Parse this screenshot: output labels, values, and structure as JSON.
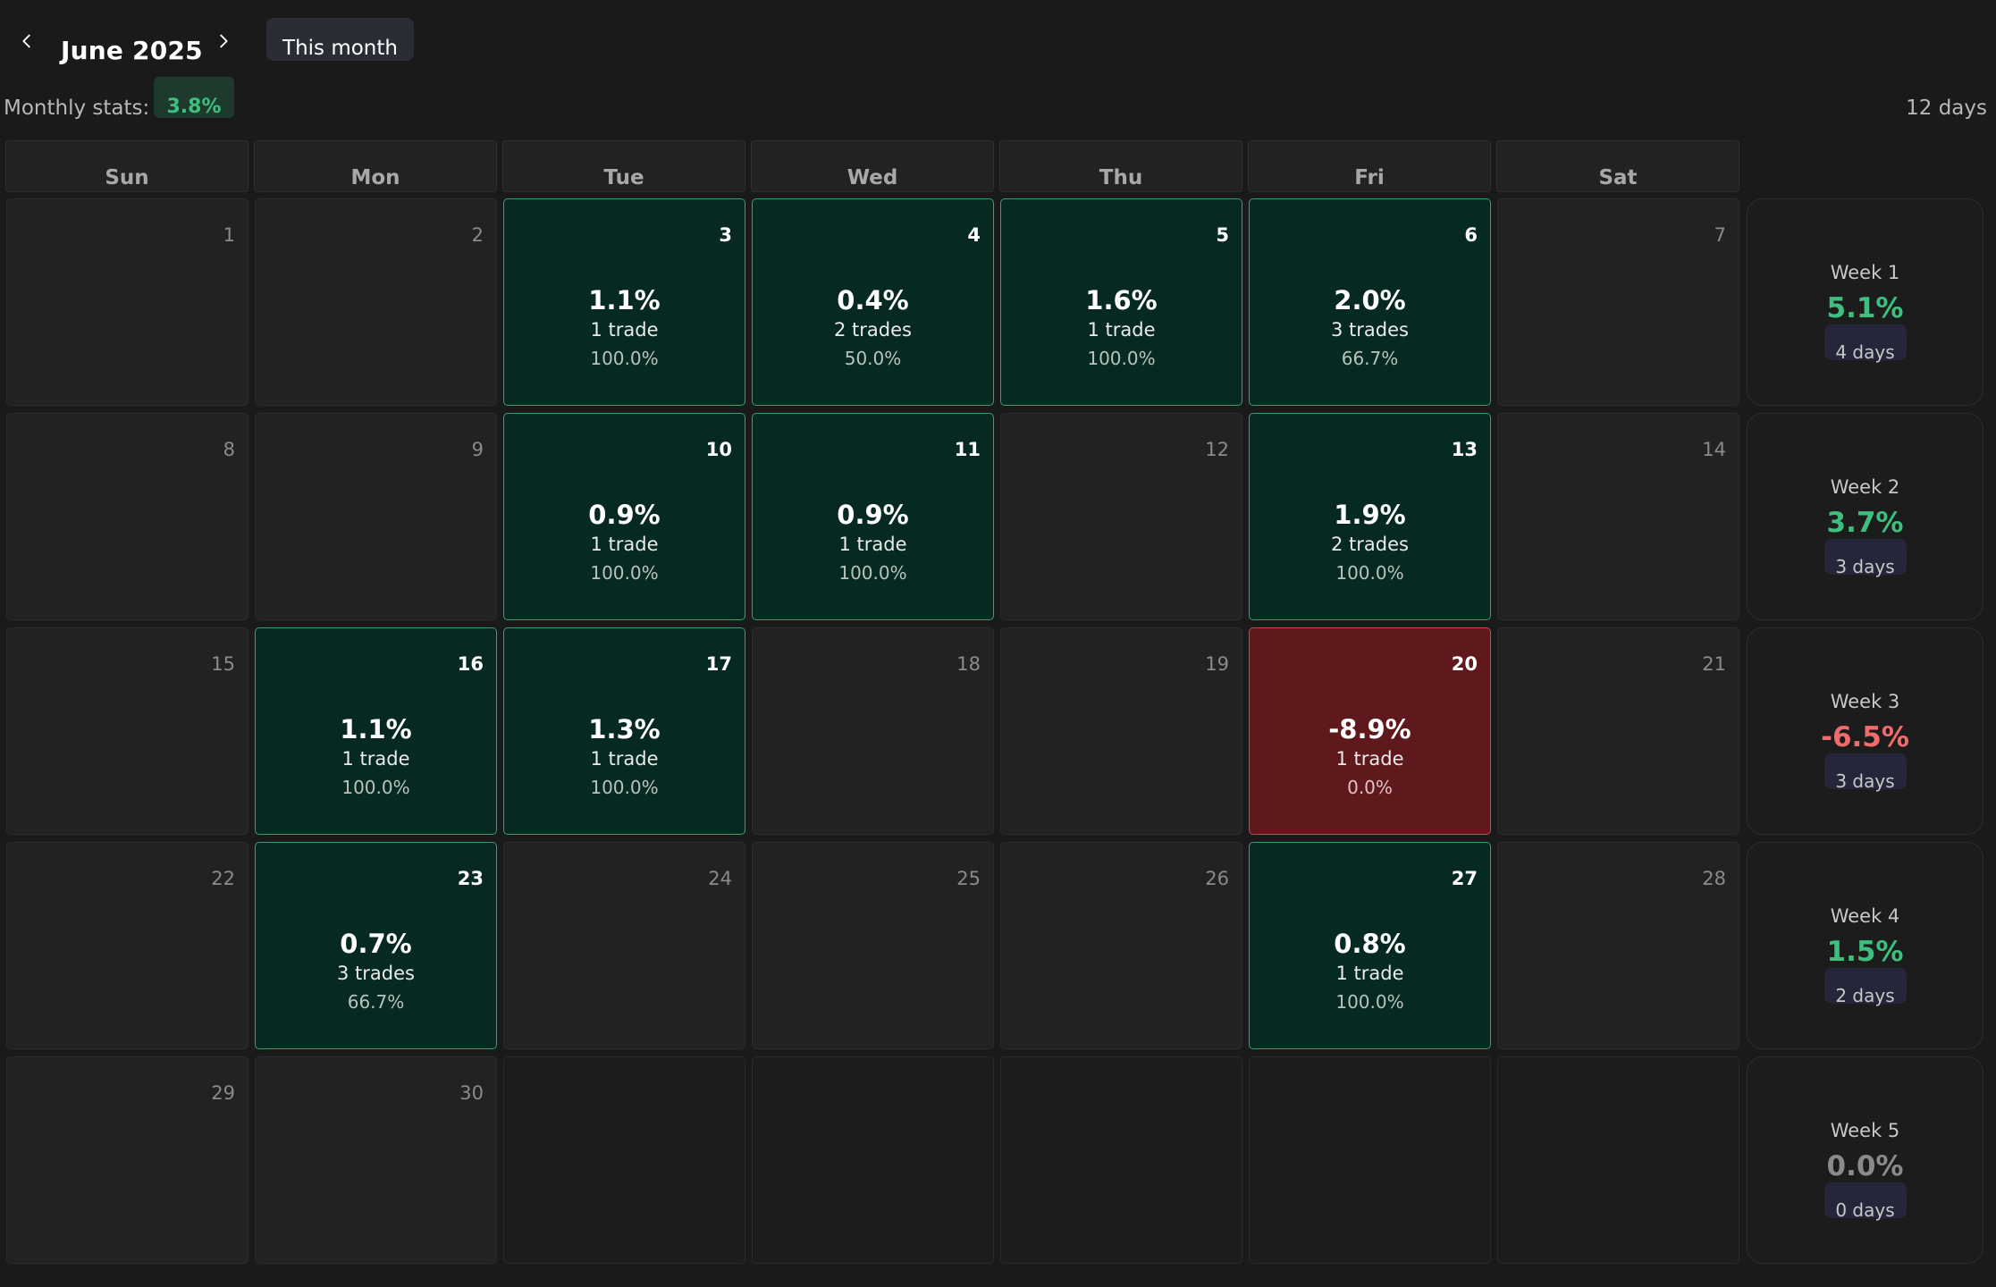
{
  "header": {
    "month_title": "June 2025",
    "this_month_label": "This month",
    "prev_icon": "chevron-left-icon",
    "next_icon": "chevron-right-icon"
  },
  "stats": {
    "label": "Monthly stats:",
    "percent": "3.8%",
    "days": "12 days"
  },
  "weekdays": [
    "Sun",
    "Mon",
    "Tue",
    "Wed",
    "Thu",
    "Fri",
    "Sat"
  ],
  "days": [
    {
      "day": "1",
      "state": "none"
    },
    {
      "day": "2",
      "state": "none"
    },
    {
      "day": "3",
      "state": "profit",
      "pct": "1.1%",
      "trades": "1 trade",
      "winrate": "100.0%"
    },
    {
      "day": "4",
      "state": "profit",
      "pct": "0.4%",
      "trades": "2 trades",
      "winrate": "50.0%"
    },
    {
      "day": "5",
      "state": "profit",
      "pct": "1.6%",
      "trades": "1 trade",
      "winrate": "100.0%"
    },
    {
      "day": "6",
      "state": "profit",
      "pct": "2.0%",
      "trades": "3 trades",
      "winrate": "66.7%"
    },
    {
      "day": "7",
      "state": "none"
    },
    {
      "day": "8",
      "state": "none"
    },
    {
      "day": "9",
      "state": "none"
    },
    {
      "day": "10",
      "state": "profit",
      "pct": "0.9%",
      "trades": "1 trade",
      "winrate": "100.0%"
    },
    {
      "day": "11",
      "state": "profit",
      "pct": "0.9%",
      "trades": "1 trade",
      "winrate": "100.0%"
    },
    {
      "day": "12",
      "state": "none"
    },
    {
      "day": "13",
      "state": "profit",
      "pct": "1.9%",
      "trades": "2 trades",
      "winrate": "100.0%"
    },
    {
      "day": "14",
      "state": "none"
    },
    {
      "day": "15",
      "state": "none"
    },
    {
      "day": "16",
      "state": "profit",
      "pct": "1.1%",
      "trades": "1 trade",
      "winrate": "100.0%"
    },
    {
      "day": "17",
      "state": "profit",
      "pct": "1.3%",
      "trades": "1 trade",
      "winrate": "100.0%"
    },
    {
      "day": "18",
      "state": "none"
    },
    {
      "day": "19",
      "state": "none"
    },
    {
      "day": "20",
      "state": "loss",
      "pct": "-8.9%",
      "trades": "1 trade",
      "winrate": "0.0%"
    },
    {
      "day": "21",
      "state": "none"
    },
    {
      "day": "22",
      "state": "none"
    },
    {
      "day": "23",
      "state": "profit",
      "pct": "0.7%",
      "trades": "3 trades",
      "winrate": "66.7%"
    },
    {
      "day": "24",
      "state": "none"
    },
    {
      "day": "25",
      "state": "none"
    },
    {
      "day": "26",
      "state": "none"
    },
    {
      "day": "27",
      "state": "profit",
      "pct": "0.8%",
      "trades": "1 trade",
      "winrate": "100.0%"
    },
    {
      "day": "28",
      "state": "none"
    },
    {
      "day": "29",
      "state": "none"
    },
    {
      "day": "30",
      "state": "none"
    },
    {
      "day": "",
      "state": "empty"
    },
    {
      "day": "",
      "state": "empty"
    },
    {
      "day": "",
      "state": "empty"
    },
    {
      "day": "",
      "state": "empty"
    },
    {
      "day": "",
      "state": "empty"
    }
  ],
  "weeks": [
    {
      "label": "Week 1",
      "pct": "5.1%",
      "days": "4 days",
      "sign": "pos"
    },
    {
      "label": "Week 2",
      "pct": "3.7%",
      "days": "3 days",
      "sign": "pos"
    },
    {
      "label": "Week 3",
      "pct": "-6.5%",
      "days": "3 days",
      "sign": "neg"
    },
    {
      "label": "Week 4",
      "pct": "1.5%",
      "days": "2 days",
      "sign": "pos"
    },
    {
      "label": "Week 5",
      "pct": "0.0%",
      "days": "0 days",
      "sign": "zero"
    }
  ],
  "colors": {
    "background": "#1a1a1a",
    "profit_cell": "#062a21",
    "profit_border": "#3a9e6e",
    "loss_cell": "#5f181c",
    "loss_border": "#c24b52",
    "positive_text": "#3fbf7f",
    "negative_text": "#f06b6b"
  }
}
